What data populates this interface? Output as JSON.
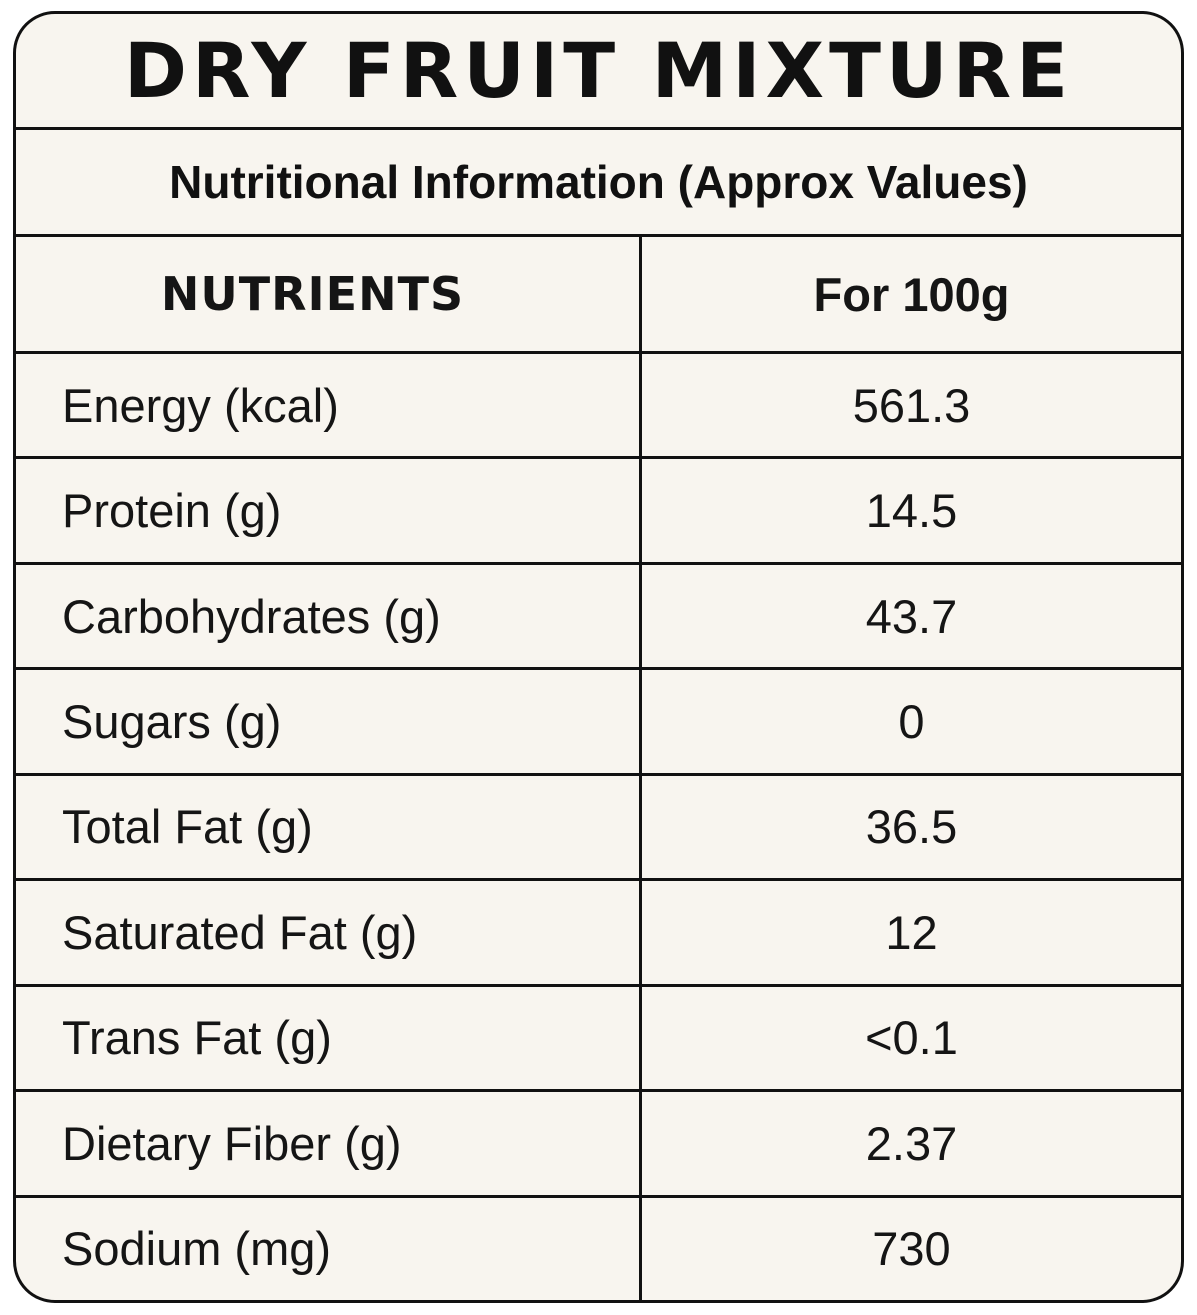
{
  "label": {
    "title": "DRY FRUIT MIXTURE",
    "subtitle": "Nutritional Information (Approx Values)",
    "header": {
      "nutrients": "NUTRIENTS",
      "per": "For 100g"
    },
    "rows": [
      {
        "name": "Energy (kcal)",
        "value": "561.3"
      },
      {
        "name": "Protein (g)",
        "value": "14.5"
      },
      {
        "name": "Carbohydrates (g)",
        "value": "43.7"
      },
      {
        "name": "Sugars (g)",
        "value": "0"
      },
      {
        "name": "Total Fat (g)",
        "value": "36.5"
      },
      {
        "name": "Saturated Fat (g)",
        "value": "12"
      },
      {
        "name": "Trans Fat (g)",
        "value": "<0.1"
      },
      {
        "name": "Dietary Fiber (g)",
        "value": "2.37"
      },
      {
        "name": "Sodium (mg)",
        "value": "730"
      }
    ]
  },
  "colors": {
    "background": "#f8f5ef",
    "border": "#111111",
    "text": "#151515"
  }
}
